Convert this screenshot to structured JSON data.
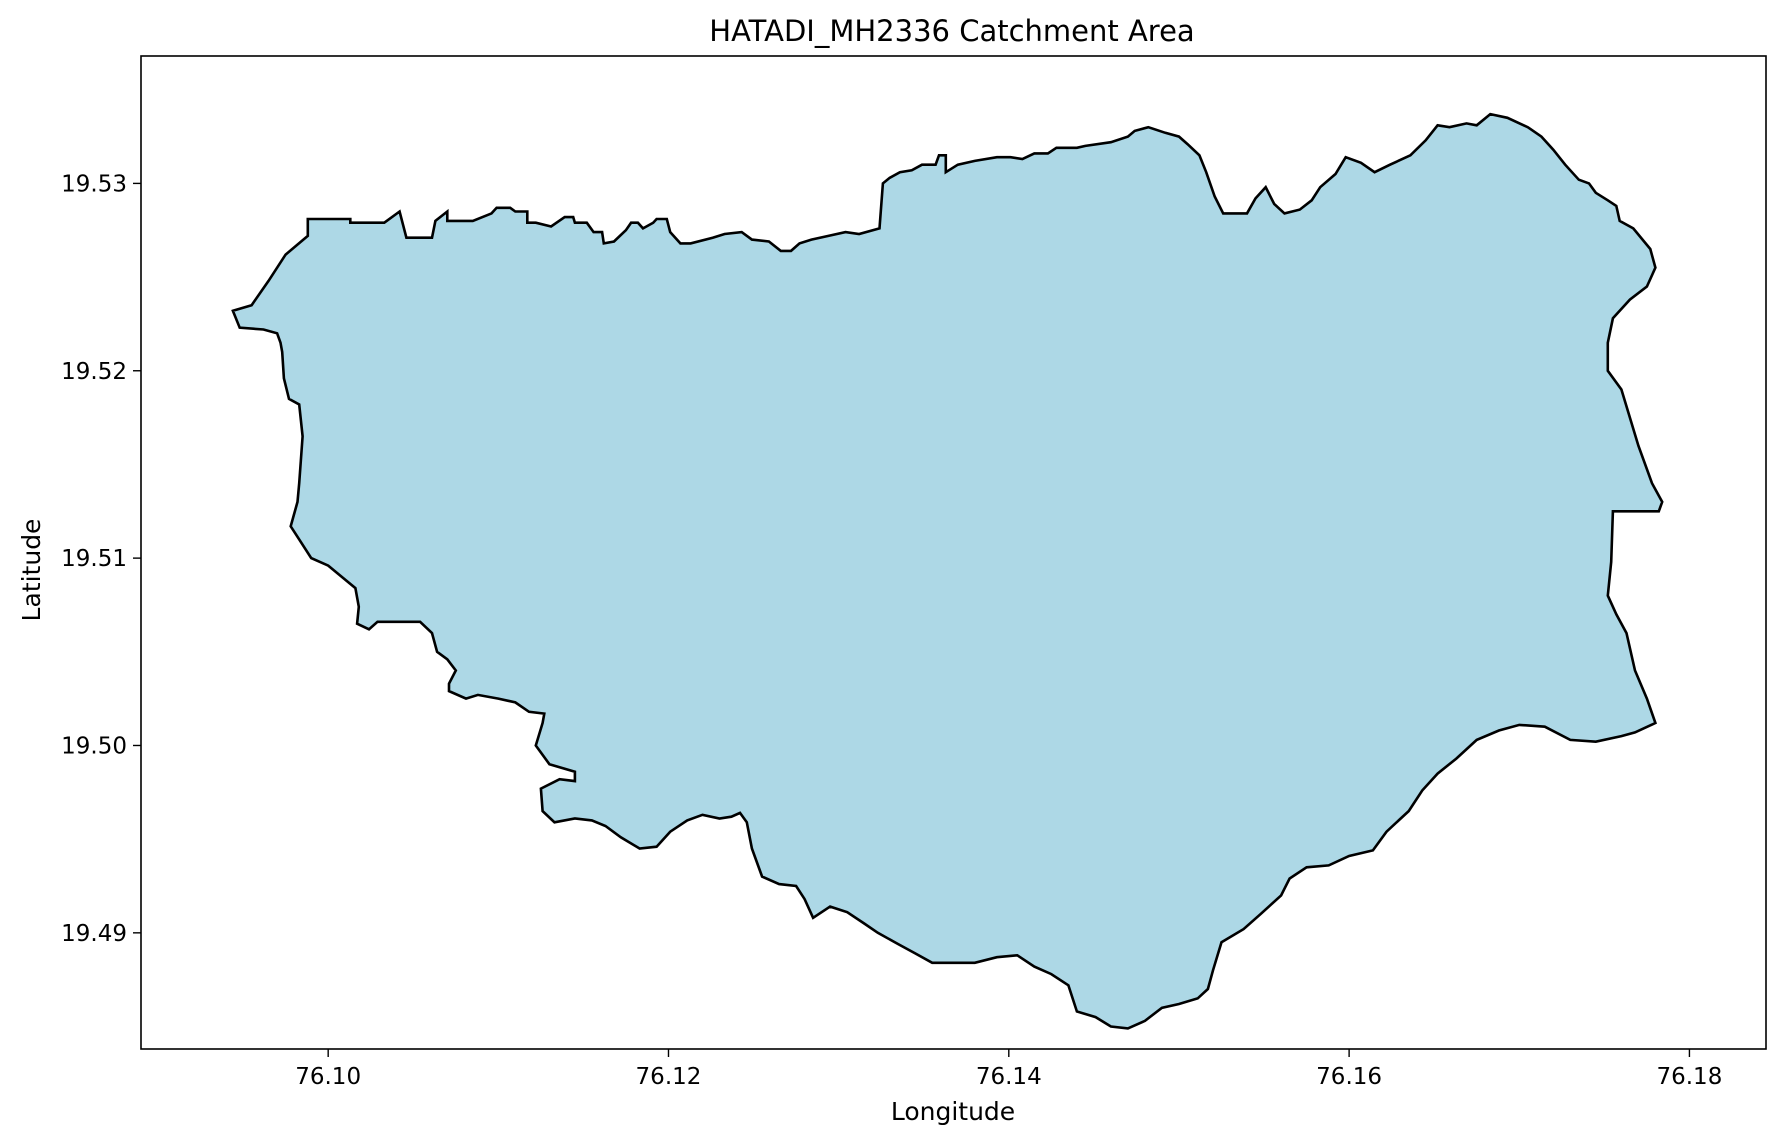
{
  "chart_data": {
    "type": "map",
    "title": "HATADI_MH2336 Catchment Area",
    "xlabel": "Longitude",
    "ylabel": "Latitude",
    "xlim": [
      76.089,
      76.1845
    ],
    "ylim": [
      19.4838,
      19.5368
    ],
    "xticks": [
      {
        "value": 76.1,
        "label": "76.10"
      },
      {
        "value": 76.12,
        "label": "76.12"
      },
      {
        "value": 76.14,
        "label": "76.14"
      },
      {
        "value": 76.16,
        "label": "76.16"
      },
      {
        "value": 76.18,
        "label": "76.18"
      }
    ],
    "yticks": [
      {
        "value": 19.49,
        "label": "19.49"
      },
      {
        "value": 19.5,
        "label": "19.50"
      },
      {
        "value": 19.51,
        "label": "19.51"
      },
      {
        "value": 19.52,
        "label": "19.52"
      },
      {
        "value": 19.53,
        "label": "19.53"
      }
    ],
    "grid": false,
    "legend": false,
    "fill_color": "#add8e6",
    "edge_color": "#000000",
    "polygon": [
      [
        76.0944,
        19.5232
      ],
      [
        76.0955,
        19.5235
      ],
      [
        76.0965,
        19.5248
      ],
      [
        76.0975,
        19.5262
      ],
      [
        76.0988,
        19.5272
      ],
      [
        76.0988,
        19.5281
      ],
      [
        76.1013,
        19.5281
      ],
      [
        76.1013,
        19.5279
      ],
      [
        76.1033,
        19.5279
      ],
      [
        76.1042,
        19.5285
      ],
      [
        76.1046,
        19.5271
      ],
      [
        76.1061,
        19.5271
      ],
      [
        76.1063,
        19.528
      ],
      [
        76.107,
        19.5285
      ],
      [
        76.107,
        19.528
      ],
      [
        76.1085,
        19.528
      ],
      [
        76.1096,
        19.5284
      ],
      [
        76.1099,
        19.5287
      ],
      [
        76.1107,
        19.5287
      ],
      [
        76.111,
        19.5285
      ],
      [
        76.1117,
        19.5285
      ],
      [
        76.1117,
        19.5279
      ],
      [
        76.1122,
        19.5279
      ],
      [
        76.1131,
        19.5277
      ],
      [
        76.1139,
        19.5282
      ],
      [
        76.1144,
        19.5282
      ],
      [
        76.1145,
        19.5279
      ],
      [
        76.1152,
        19.5279
      ],
      [
        76.1152,
        19.5279
      ],
      [
        76.1156,
        19.5274
      ],
      [
        76.1161,
        19.5274
      ],
      [
        76.1162,
        19.5268
      ],
      [
        76.1168,
        19.5269
      ],
      [
        76.1175,
        19.5275
      ],
      [
        76.1178,
        19.5279
      ],
      [
        76.1182,
        19.5279
      ],
      [
        76.1185,
        19.5276
      ],
      [
        76.1191,
        19.5279
      ],
      [
        76.1193,
        19.5281
      ],
      [
        76.1199,
        19.5281
      ],
      [
        76.1201,
        19.5274
      ],
      [
        76.1207,
        19.5268
      ],
      [
        76.1213,
        19.5268
      ],
      [
        76.1226,
        19.5271
      ],
      [
        76.1233,
        19.5273
      ],
      [
        76.1243,
        19.5274
      ],
      [
        76.1249,
        19.527
      ],
      [
        76.1259,
        19.5269
      ],
      [
        76.1266,
        19.5264
      ],
      [
        76.1272,
        19.5264
      ],
      [
        76.1277,
        19.5268
      ],
      [
        76.1284,
        19.527
      ],
      [
        76.1294,
        19.5272
      ],
      [
        76.1304,
        19.5274
      ],
      [
        76.1312,
        19.5273
      ],
      [
        76.1324,
        19.5276
      ],
      [
        76.1326,
        19.53
      ],
      [
        76.133,
        19.5303
      ],
      [
        76.1336,
        19.5306
      ],
      [
        76.1343,
        19.5307
      ],
      [
        76.1349,
        19.531
      ],
      [
        76.1357,
        19.531
      ],
      [
        76.1359,
        19.5315
      ],
      [
        76.1363,
        19.5315
      ],
      [
        76.1363,
        19.5306
      ],
      [
        76.137,
        19.531
      ],
      [
        76.138,
        19.5312
      ],
      [
        76.1393,
        19.5314
      ],
      [
        76.1401,
        19.5314
      ],
      [
        76.1408,
        19.5313
      ],
      [
        76.1415,
        19.5316
      ],
      [
        76.1423,
        19.5316
      ],
      [
        76.1428,
        19.5319
      ],
      [
        76.144,
        19.5319
      ],
      [
        76.1445,
        19.532
      ],
      [
        76.146,
        19.5322
      ],
      [
        76.147,
        19.5325
      ],
      [
        76.1474,
        19.5328
      ],
      [
        76.1482,
        19.533
      ],
      [
        76.1492,
        19.5327
      ],
      [
        76.15,
        19.5325
      ],
      [
        76.1505,
        19.5321
      ],
      [
        76.1512,
        19.5315
      ],
      [
        76.1516,
        19.5306
      ],
      [
        76.1521,
        19.5293
      ],
      [
        76.1526,
        19.5284
      ],
      [
        76.154,
        19.5284
      ],
      [
        76.1545,
        19.5292
      ],
      [
        76.1551,
        19.5298
      ],
      [
        76.1556,
        19.5289
      ],
      [
        76.1562,
        19.5284
      ],
      [
        76.1571,
        19.5286
      ],
      [
        76.1578,
        19.5291
      ],
      [
        76.1583,
        19.5298
      ],
      [
        76.1592,
        19.5305
      ],
      [
        76.1598,
        19.5314
      ],
      [
        76.1607,
        19.5311
      ],
      [
        76.1615,
        19.5306
      ],
      [
        76.1624,
        19.531
      ],
      [
        76.1636,
        19.5315
      ],
      [
        76.1645,
        19.5323
      ],
      [
        76.1652,
        19.5331
      ],
      [
        76.1659,
        19.533
      ],
      [
        76.1669,
        19.5332
      ],
      [
        76.1675,
        19.5331
      ],
      [
        76.1683,
        19.5337
      ],
      [
        76.1693,
        19.5335
      ],
      [
        76.1705,
        19.533
      ],
      [
        76.1713,
        19.5325
      ],
      [
        76.172,
        19.5318
      ],
      [
        76.1727,
        19.531
      ],
      [
        76.1735,
        19.5302
      ],
      [
        76.1741,
        19.53
      ],
      [
        76.1745,
        19.5295
      ],
      [
        76.1752,
        19.5291
      ],
      [
        76.1757,
        19.5288
      ],
      [
        76.1759,
        19.528
      ],
      [
        76.1767,
        19.5276
      ],
      [
        76.1777,
        19.5265
      ],
      [
        76.178,
        19.5255
      ],
      [
        76.1775,
        19.5245
      ],
      [
        76.1765,
        19.5238
      ],
      [
        76.1755,
        19.5228
      ],
      [
        76.1752,
        19.5215
      ],
      [
        76.1752,
        19.52
      ],
      [
        76.176,
        19.519
      ],
      [
        76.1765,
        19.5175
      ],
      [
        76.177,
        19.516
      ],
      [
        76.1778,
        19.514
      ],
      [
        76.1784,
        19.513
      ],
      [
        76.1782,
        19.5125
      ],
      [
        76.1755,
        19.5125
      ],
      [
        76.1754,
        19.5098
      ],
      [
        76.1752,
        19.508
      ],
      [
        76.1757,
        19.507
      ],
      [
        76.1763,
        19.506
      ],
      [
        76.1768,
        19.504
      ],
      [
        76.1775,
        19.5025
      ],
      [
        76.178,
        19.5012
      ],
      [
        76.1768,
        19.5007
      ],
      [
        76.176,
        19.5005
      ],
      [
        76.1745,
        19.5002
      ],
      [
        76.173,
        19.5003
      ],
      [
        76.1715,
        19.501
      ],
      [
        76.17,
        19.5011
      ],
      [
        76.1688,
        19.5008
      ],
      [
        76.1675,
        19.5003
      ],
      [
        76.1663,
        19.4993
      ],
      [
        76.1652,
        19.4985
      ],
      [
        76.1643,
        19.4976
      ],
      [
        76.1635,
        19.4965
      ],
      [
        76.1622,
        19.4954
      ],
      [
        76.1614,
        19.4944
      ],
      [
        76.16,
        19.4941
      ],
      [
        76.1588,
        19.4936
      ],
      [
        76.1575,
        19.4935
      ],
      [
        76.1565,
        19.4929
      ],
      [
        76.156,
        19.492
      ],
      [
        76.1548,
        19.491
      ],
      [
        76.1538,
        19.4902
      ],
      [
        76.1525,
        19.4895
      ],
      [
        76.152,
        19.488
      ],
      [
        76.1517,
        19.487
      ],
      [
        76.1511,
        19.4865
      ],
      [
        76.15,
        19.4862
      ],
      [
        76.149,
        19.486
      ],
      [
        76.148,
        19.4853
      ],
      [
        76.147,
        19.4849
      ],
      [
        76.146,
        19.485
      ],
      [
        76.1451,
        19.4855
      ],
      [
        76.144,
        19.4858
      ],
      [
        76.1435,
        19.4872
      ],
      [
        76.1425,
        19.4878
      ],
      [
        76.1415,
        19.4882
      ],
      [
        76.1405,
        19.4888
      ],
      [
        76.1393,
        19.4887
      ],
      [
        76.138,
        19.4884
      ],
      [
        76.1366,
        19.4884
      ],
      [
        76.1355,
        19.4884
      ],
      [
        76.1345,
        19.4889
      ],
      [
        76.1335,
        19.4894
      ],
      [
        76.1323,
        19.49
      ],
      [
        76.1315,
        19.4905
      ],
      [
        76.1305,
        19.4911
      ],
      [
        76.1295,
        19.4914
      ],
      [
        76.1285,
        19.4908
      ],
      [
        76.128,
        19.4918
      ],
      [
        76.1275,
        19.4925
      ],
      [
        76.1265,
        19.4926
      ],
      [
        76.1255,
        19.493
      ],
      [
        76.1249,
        19.4945
      ],
      [
        76.1246,
        19.4959
      ],
      [
        76.1242,
        19.4964
      ],
      [
        76.1237,
        19.4962
      ],
      [
        76.123,
        19.4961
      ],
      [
        76.122,
        19.4963
      ],
      [
        76.1211,
        19.496
      ],
      [
        76.1201,
        19.4954
      ],
      [
        76.1193,
        19.4946
      ],
      [
        76.1183,
        19.4945
      ],
      [
        76.1172,
        19.4951
      ],
      [
        76.1163,
        19.4957
      ],
      [
        76.1155,
        19.496
      ],
      [
        76.1145,
        19.4961
      ],
      [
        76.1133,
        19.4959
      ],
      [
        76.1126,
        19.4965
      ],
      [
        76.1125,
        19.4977
      ],
      [
        76.1136,
        19.4982
      ],
      [
        76.1145,
        19.4981
      ],
      [
        76.1145,
        19.4986
      ],
      [
        76.113,
        19.499
      ],
      [
        76.1122,
        19.5
      ],
      [
        76.1126,
        19.5012
      ],
      [
        76.1127,
        19.5017
      ],
      [
        76.1118,
        19.5018
      ],
      [
        76.111,
        19.5023
      ],
      [
        76.11,
        19.5025
      ],
      [
        76.1088,
        19.5027
      ],
      [
        76.1081,
        19.5025
      ],
      [
        76.1071,
        19.5029
      ],
      [
        76.1071,
        19.5033
      ],
      [
        76.1075,
        19.504
      ],
      [
        76.107,
        19.5046
      ],
      [
        76.1064,
        19.505
      ],
      [
        76.1061,
        19.506
      ],
      [
        76.1054,
        19.5066
      ],
      [
        76.1044,
        19.5066
      ],
      [
        76.1036,
        19.5066
      ],
      [
        76.1029,
        19.5066
      ],
      [
        76.1024,
        19.5062
      ],
      [
        76.1017,
        19.5065
      ],
      [
        76.1018,
        19.5074
      ],
      [
        76.1016,
        19.5084
      ],
      [
        76.1008,
        19.509
      ],
      [
        76.1,
        19.5096
      ],
      [
        76.099,
        19.51
      ],
      [
        76.0983,
        19.511
      ],
      [
        76.0978,
        19.5117
      ],
      [
        76.0982,
        19.513
      ],
      [
        76.0983,
        19.514
      ],
      [
        76.0985,
        19.5165
      ],
      [
        76.0983,
        19.5182
      ],
      [
        76.0977,
        19.5185
      ],
      [
        76.0974,
        19.5196
      ],
      [
        76.0973,
        19.521
      ],
      [
        76.0972,
        19.5215
      ],
      [
        76.097,
        19.522
      ],
      [
        76.0962,
        19.5222
      ],
      [
        76.0948,
        19.5223
      ],
      [
        76.0944,
        19.5232
      ]
    ]
  }
}
